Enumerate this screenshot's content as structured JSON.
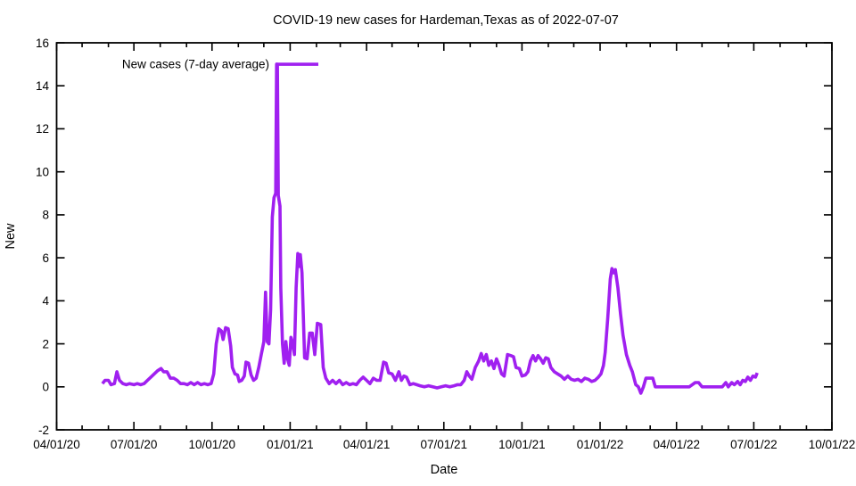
{
  "title": "COVID-19 new cases for Hardeman,Texas as of 2022-07-07",
  "legend": {
    "label": "New cases (7-day average)",
    "position": "top-left-inside"
  },
  "axes": {
    "x_label": "Date",
    "y_label": "New",
    "x_tick_labels": [
      "04/01/20",
      "07/01/20",
      "10/01/20",
      "01/01/21",
      "04/01/21",
      "07/01/21",
      "10/01/21",
      "01/01/22",
      "04/01/22",
      "07/01/22",
      "10/01/22"
    ],
    "y_tick_labels": [
      "-2",
      "0",
      "2",
      "4",
      "6",
      "8",
      "10",
      "12",
      "14",
      "16"
    ]
  },
  "colors": {
    "line": "#a020f0",
    "axis": "#000000",
    "background": "#ffffff"
  },
  "chart_data": {
    "type": "line",
    "title": "COVID-19 new cases for Hardeman,Texas as of 2022-07-07",
    "xlabel": "Date",
    "ylabel": "New",
    "x_range": [
      "2020-04-01",
      "2022-10-01"
    ],
    "ylim": [
      -2,
      16
    ],
    "grid": false,
    "x_major_tick_interval_months": 3,
    "x_minor_tick_interval_months": 1,
    "y_tick_interval": 2,
    "series": [
      {
        "name": "New cases (7-day average)",
        "color": "#a020f0",
        "points": [
          [
            "2020-05-25",
            0.15
          ],
          [
            "2020-05-28",
            0.3
          ],
          [
            "2020-06-01",
            0.3
          ],
          [
            "2020-06-04",
            0.1
          ],
          [
            "2020-06-08",
            0.15
          ],
          [
            "2020-06-11",
            0.7
          ],
          [
            "2020-06-14",
            0.3
          ],
          [
            "2020-06-18",
            0.15
          ],
          [
            "2020-06-22",
            0.1
          ],
          [
            "2020-06-26",
            0.15
          ],
          [
            "2020-07-01",
            0.1
          ],
          [
            "2020-07-05",
            0.15
          ],
          [
            "2020-07-09",
            0.1
          ],
          [
            "2020-07-13",
            0.15
          ],
          [
            "2020-07-17",
            0.3
          ],
          [
            "2020-07-21",
            0.45
          ],
          [
            "2020-07-25",
            0.6
          ],
          [
            "2020-07-29",
            0.75
          ],
          [
            "2020-08-02",
            0.85
          ],
          [
            "2020-08-05",
            0.7
          ],
          [
            "2020-08-09",
            0.7
          ],
          [
            "2020-08-13",
            0.4
          ],
          [
            "2020-08-17",
            0.4
          ],
          [
            "2020-08-21",
            0.3
          ],
          [
            "2020-08-25",
            0.15
          ],
          [
            "2020-08-29",
            0.15
          ],
          [
            "2020-09-02",
            0.1
          ],
          [
            "2020-09-06",
            0.2
          ],
          [
            "2020-09-10",
            0.1
          ],
          [
            "2020-09-14",
            0.2
          ],
          [
            "2020-09-18",
            0.1
          ],
          [
            "2020-09-22",
            0.15
          ],
          [
            "2020-09-26",
            0.1
          ],
          [
            "2020-09-30",
            0.15
          ],
          [
            "2020-10-03",
            0.6
          ],
          [
            "2020-10-06",
            2.0
          ],
          [
            "2020-10-09",
            2.7
          ],
          [
            "2020-10-12",
            2.6
          ],
          [
            "2020-10-14",
            2.2
          ],
          [
            "2020-10-17",
            2.75
          ],
          [
            "2020-10-20",
            2.7
          ],
          [
            "2020-10-23",
            1.9
          ],
          [
            "2020-10-25",
            0.9
          ],
          [
            "2020-10-28",
            0.6
          ],
          [
            "2020-10-31",
            0.55
          ],
          [
            "2020-11-02",
            0.25
          ],
          [
            "2020-11-05",
            0.3
          ],
          [
            "2020-11-08",
            0.5
          ],
          [
            "2020-11-10",
            1.15
          ],
          [
            "2020-11-13",
            1.1
          ],
          [
            "2020-11-16",
            0.55
          ],
          [
            "2020-11-19",
            0.3
          ],
          [
            "2020-11-22",
            0.4
          ],
          [
            "2020-11-25",
            0.9
          ],
          [
            "2020-11-28",
            1.5
          ],
          [
            "2020-12-01",
            2.1
          ],
          [
            "2020-12-03",
            4.4
          ],
          [
            "2020-12-05",
            2.1
          ],
          [
            "2020-12-07",
            2.0
          ],
          [
            "2020-12-09",
            3.6
          ],
          [
            "2020-12-11",
            7.9
          ],
          [
            "2020-12-13",
            8.8
          ],
          [
            "2020-12-15",
            9.0
          ],
          [
            "2020-12-16",
            15.0
          ],
          [
            "2020-12-17",
            15.0
          ],
          [
            "2020-12-18",
            8.9
          ],
          [
            "2020-12-20",
            8.4
          ],
          [
            "2020-12-21",
            4.6
          ],
          [
            "2020-12-23",
            2.0
          ],
          [
            "2020-12-25",
            1.1
          ],
          [
            "2020-12-27",
            2.1
          ],
          [
            "2020-12-29",
            1.3
          ],
          [
            "2020-12-31",
            1.0
          ],
          [
            "2021-01-02",
            2.3
          ],
          [
            "2021-01-04",
            2.0
          ],
          [
            "2021-01-06",
            1.5
          ],
          [
            "2021-01-08",
            4.6
          ],
          [
            "2021-01-10",
            6.2
          ],
          [
            "2021-01-12",
            5.6
          ],
          [
            "2021-01-13",
            6.15
          ],
          [
            "2021-01-15",
            5.3
          ],
          [
            "2021-01-18",
            1.35
          ],
          [
            "2021-01-21",
            1.3
          ],
          [
            "2021-01-24",
            2.5
          ],
          [
            "2021-01-27",
            2.5
          ],
          [
            "2021-01-30",
            1.5
          ],
          [
            "2021-02-02",
            2.95
          ],
          [
            "2021-02-06",
            2.9
          ],
          [
            "2021-02-09",
            0.9
          ],
          [
            "2021-02-12",
            0.4
          ],
          [
            "2021-02-16",
            0.15
          ],
          [
            "2021-02-20",
            0.3
          ],
          [
            "2021-02-24",
            0.15
          ],
          [
            "2021-02-28",
            0.3
          ],
          [
            "2021-03-04",
            0.1
          ],
          [
            "2021-03-08",
            0.2
          ],
          [
            "2021-03-12",
            0.1
          ],
          [
            "2021-03-16",
            0.15
          ],
          [
            "2021-03-20",
            0.1
          ],
          [
            "2021-03-24",
            0.3
          ],
          [
            "2021-03-28",
            0.45
          ],
          [
            "2021-04-01",
            0.3
          ],
          [
            "2021-04-05",
            0.15
          ],
          [
            "2021-04-09",
            0.4
          ],
          [
            "2021-04-13",
            0.3
          ],
          [
            "2021-04-17",
            0.3
          ],
          [
            "2021-04-21",
            1.15
          ],
          [
            "2021-04-24",
            1.1
          ],
          [
            "2021-04-27",
            0.65
          ],
          [
            "2021-05-01",
            0.6
          ],
          [
            "2021-05-05",
            0.3
          ],
          [
            "2021-05-09",
            0.7
          ],
          [
            "2021-05-12",
            0.3
          ],
          [
            "2021-05-15",
            0.5
          ],
          [
            "2021-05-18",
            0.45
          ],
          [
            "2021-05-22",
            0.1
          ],
          [
            "2021-05-26",
            0.15
          ],
          [
            "2021-05-30",
            0.1
          ],
          [
            "2021-06-03",
            0.05
          ],
          [
            "2021-06-08",
            0.0
          ],
          [
            "2021-06-13",
            0.05
          ],
          [
            "2021-06-18",
            0.0
          ],
          [
            "2021-06-23",
            -0.05
          ],
          [
            "2021-06-28",
            0.0
          ],
          [
            "2021-07-03",
            0.05
          ],
          [
            "2021-07-08",
            0.0
          ],
          [
            "2021-07-13",
            0.05
          ],
          [
            "2021-07-17",
            0.1
          ],
          [
            "2021-07-21",
            0.1
          ],
          [
            "2021-07-25",
            0.3
          ],
          [
            "2021-07-28",
            0.7
          ],
          [
            "2021-07-31",
            0.5
          ],
          [
            "2021-08-03",
            0.35
          ],
          [
            "2021-08-07",
            0.9
          ],
          [
            "2021-08-11",
            1.2
          ],
          [
            "2021-08-14",
            1.55
          ],
          [
            "2021-08-17",
            1.2
          ],
          [
            "2021-08-20",
            1.5
          ],
          [
            "2021-08-23",
            1.0
          ],
          [
            "2021-08-26",
            1.2
          ],
          [
            "2021-08-29",
            0.85
          ],
          [
            "2021-09-01",
            1.3
          ],
          [
            "2021-09-04",
            1.0
          ],
          [
            "2021-09-07",
            0.6
          ],
          [
            "2021-09-10",
            0.5
          ],
          [
            "2021-09-14",
            1.5
          ],
          [
            "2021-09-18",
            1.45
          ],
          [
            "2021-09-21",
            1.4
          ],
          [
            "2021-09-24",
            0.9
          ],
          [
            "2021-09-28",
            0.85
          ],
          [
            "2021-10-01",
            0.5
          ],
          [
            "2021-10-05",
            0.55
          ],
          [
            "2021-10-08",
            0.7
          ],
          [
            "2021-10-11",
            1.2
          ],
          [
            "2021-10-14",
            1.45
          ],
          [
            "2021-10-17",
            1.2
          ],
          [
            "2021-10-20",
            1.45
          ],
          [
            "2021-10-23",
            1.3
          ],
          [
            "2021-10-26",
            1.1
          ],
          [
            "2021-10-29",
            1.35
          ],
          [
            "2021-11-01",
            1.3
          ],
          [
            "2021-11-04",
            0.9
          ],
          [
            "2021-11-08",
            0.7
          ],
          [
            "2021-11-12",
            0.6
          ],
          [
            "2021-11-16",
            0.5
          ],
          [
            "2021-11-20",
            0.35
          ],
          [
            "2021-11-24",
            0.5
          ],
          [
            "2021-11-28",
            0.35
          ],
          [
            "2021-12-02",
            0.3
          ],
          [
            "2021-12-06",
            0.35
          ],
          [
            "2021-12-10",
            0.25
          ],
          [
            "2021-12-14",
            0.4
          ],
          [
            "2021-12-18",
            0.35
          ],
          [
            "2021-12-22",
            0.25
          ],
          [
            "2021-12-26",
            0.3
          ],
          [
            "2021-12-30",
            0.45
          ],
          [
            "2022-01-02",
            0.6
          ],
          [
            "2022-01-05",
            1.0
          ],
          [
            "2022-01-07",
            1.6
          ],
          [
            "2022-01-10",
            3.2
          ],
          [
            "2022-01-13",
            5.0
          ],
          [
            "2022-01-15",
            5.5
          ],
          [
            "2022-01-17",
            5.3
          ],
          [
            "2022-01-19",
            5.45
          ],
          [
            "2022-01-22",
            4.6
          ],
          [
            "2022-01-25",
            3.4
          ],
          [
            "2022-01-28",
            2.4
          ],
          [
            "2022-02-01",
            1.5
          ],
          [
            "2022-02-05",
            1.0
          ],
          [
            "2022-02-08",
            0.7
          ],
          [
            "2022-02-12",
            0.1
          ],
          [
            "2022-02-15",
            0.0
          ],
          [
            "2022-02-18",
            -0.3
          ],
          [
            "2022-02-21",
            0.0
          ],
          [
            "2022-02-24",
            0.4
          ],
          [
            "2022-02-28",
            0.4
          ],
          [
            "2022-03-04",
            0.4
          ],
          [
            "2022-03-07",
            0.0
          ],
          [
            "2022-03-15",
            0.0
          ],
          [
            "2022-03-23",
            0.0
          ],
          [
            "2022-03-31",
            0.0
          ],
          [
            "2022-04-08",
            0.0
          ],
          [
            "2022-04-16",
            0.0
          ],
          [
            "2022-04-23",
            0.2
          ],
          [
            "2022-04-27",
            0.2
          ],
          [
            "2022-05-01",
            0.0
          ],
          [
            "2022-05-09",
            0.0
          ],
          [
            "2022-05-17",
            0.0
          ],
          [
            "2022-05-25",
            0.0
          ],
          [
            "2022-05-29",
            0.2
          ],
          [
            "2022-06-01",
            0.0
          ],
          [
            "2022-06-05",
            0.2
          ],
          [
            "2022-06-08",
            0.1
          ],
          [
            "2022-06-12",
            0.25
          ],
          [
            "2022-06-15",
            0.1
          ],
          [
            "2022-06-18",
            0.3
          ],
          [
            "2022-06-21",
            0.25
          ],
          [
            "2022-06-24",
            0.45
          ],
          [
            "2022-06-27",
            0.3
          ],
          [
            "2022-06-30",
            0.5
          ],
          [
            "2022-07-03",
            0.45
          ],
          [
            "2022-07-05",
            0.65
          ]
        ]
      }
    ]
  }
}
